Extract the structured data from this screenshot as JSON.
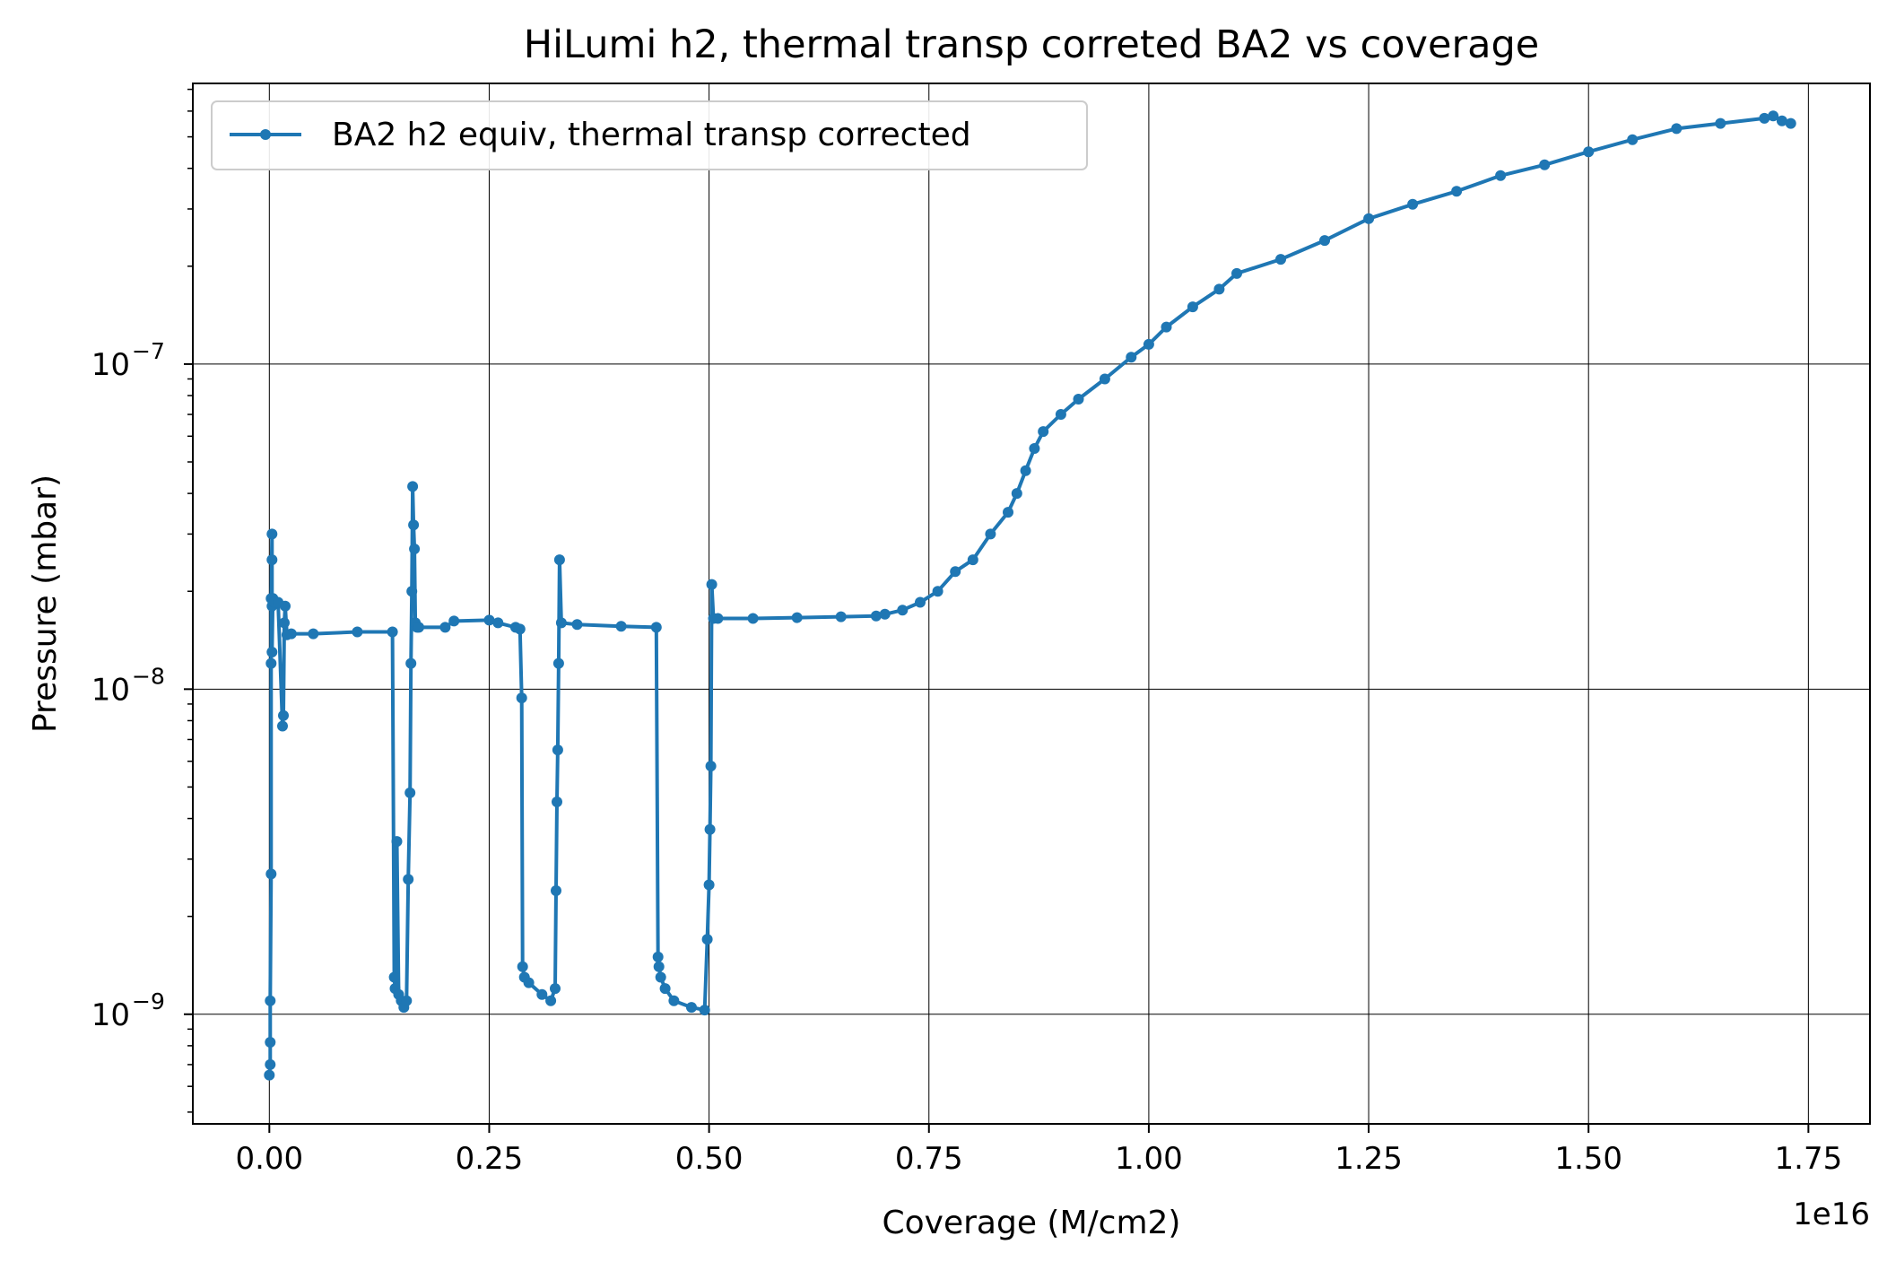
{
  "chart_data": {
    "type": "line",
    "title": "HiLumi h2, thermal transp correted BA2 vs coverage",
    "xlabel": "Coverage (M/cm2)",
    "ylabel": "Pressure (mbar)",
    "x_scale_label": "1e16",
    "x_multiplier": 1e+16,
    "yscale": "log",
    "xlim": [
      -0.087,
      1.82
    ],
    "ylim": [
      4.6e-10,
      7.3e-07
    ],
    "grid": true,
    "legend_position": "upper left",
    "series_color": "#1f77b4",
    "x_ticks": [
      {
        "value": 0.0,
        "label": "0.00"
      },
      {
        "value": 0.25,
        "label": "0.25"
      },
      {
        "value": 0.5,
        "label": "0.50"
      },
      {
        "value": 0.75,
        "label": "0.75"
      },
      {
        "value": 1.0,
        "label": "1.00"
      },
      {
        "value": 1.25,
        "label": "1.25"
      },
      {
        "value": 1.5,
        "label": "1.50"
      },
      {
        "value": 1.75,
        "label": "1.75"
      }
    ],
    "y_ticks": [
      {
        "value": 1e-09,
        "base": "10",
        "exp": "−9"
      },
      {
        "value": 1e-08,
        "base": "10",
        "exp": "−8"
      },
      {
        "value": 1e-07,
        "base": "10",
        "exp": "−7"
      }
    ],
    "series": [
      {
        "name": "BA2 h2 equiv, thermal transp corrected",
        "x": [
          0.0,
          0.001,
          0.001,
          0.001,
          0.002,
          0.002,
          0.002,
          0.003,
          0.003,
          0.003,
          0.003,
          0.004,
          0.004,
          0.005,
          0.006,
          0.01,
          0.015,
          0.016,
          0.017,
          0.018,
          0.02,
          0.025,
          0.05,
          0.1,
          0.14,
          0.142,
          0.143,
          0.145,
          0.147,
          0.15,
          0.153,
          0.156,
          0.158,
          0.16,
          0.161,
          0.162,
          0.163,
          0.164,
          0.165,
          0.166,
          0.168,
          0.17,
          0.2,
          0.21,
          0.25,
          0.26,
          0.28,
          0.285,
          0.287,
          0.288,
          0.29,
          0.295,
          0.31,
          0.32,
          0.325,
          0.326,
          0.327,
          0.328,
          0.329,
          0.33,
          0.332,
          0.35,
          0.4,
          0.44,
          0.442,
          0.443,
          0.445,
          0.45,
          0.46,
          0.48,
          0.495,
          0.498,
          0.5,
          0.501,
          0.502,
          0.503,
          0.505,
          0.51,
          0.55,
          0.6,
          0.65,
          0.69,
          0.7,
          0.72,
          0.74,
          0.76,
          0.78,
          0.8,
          0.82,
          0.84,
          0.85,
          0.86,
          0.87,
          0.88,
          0.9,
          0.92,
          0.95,
          0.98,
          1.0,
          1.02,
          1.05,
          1.08,
          1.1,
          1.15,
          1.2,
          1.25,
          1.3,
          1.35,
          1.4,
          1.45,
          1.5,
          1.55,
          1.6,
          1.65,
          1.7,
          1.71,
          1.72,
          1.73
        ],
        "y": [
          6.5e-10,
          7e-10,
          8.2e-10,
          1.1e-09,
          2.7e-09,
          1.2e-08,
          1.9e-08,
          3e-08,
          2.5e-08,
          1.8e-08,
          1.3e-08,
          1.9e-08,
          1.9e-08,
          1.85e-08,
          1.85e-08,
          1.85e-08,
          7.7e-09,
          8.3e-09,
          1.6e-08,
          1.8e-08,
          1.47e-08,
          1.48e-08,
          1.48e-08,
          1.5e-08,
          1.5e-08,
          1.3e-09,
          1.2e-09,
          3.4e-09,
          1.15e-09,
          1.1e-09,
          1.05e-09,
          1.1e-09,
          2.6e-09,
          4.8e-09,
          1.2e-08,
          2e-08,
          4.2e-08,
          3.2e-08,
          2.7e-08,
          1.6e-08,
          1.55e-08,
          1.55e-08,
          1.55e-08,
          1.62e-08,
          1.63e-08,
          1.6e-08,
          1.55e-08,
          1.53e-08,
          9.4e-09,
          1.4e-09,
          1.3e-09,
          1.25e-09,
          1.15e-09,
          1.1e-09,
          1.2e-09,
          2.4e-09,
          4.5e-09,
          6.5e-09,
          1.2e-08,
          2.5e-08,
          1.6e-08,
          1.58e-08,
          1.56e-08,
          1.55e-08,
          1.5e-09,
          1.4e-09,
          1.3e-09,
          1.2e-09,
          1.1e-09,
          1.05e-09,
          1.03e-09,
          1.7e-09,
          2.5e-09,
          3.7e-09,
          5.8e-09,
          2.1e-08,
          1.65e-08,
          1.65e-08,
          1.65e-08,
          1.66e-08,
          1.67e-08,
          1.68e-08,
          1.7e-08,
          1.75e-08,
          1.85e-08,
          2e-08,
          2.3e-08,
          2.5e-08,
          3e-08,
          3.5e-08,
          4e-08,
          4.7e-08,
          5.5e-08,
          6.2e-08,
          7e-08,
          7.8e-08,
          9e-08,
          1.05e-07,
          1.15e-07,
          1.3e-07,
          1.5e-07,
          1.7e-07,
          1.9e-07,
          2.1e-07,
          2.4e-07,
          2.8e-07,
          3.1e-07,
          3.4e-07,
          3.8e-07,
          4.1e-07,
          4.5e-07,
          4.9e-07,
          5.3e-07,
          5.5e-07,
          5.7e-07,
          5.8e-07,
          5.6e-07,
          5.5e-07
        ]
      }
    ]
  }
}
